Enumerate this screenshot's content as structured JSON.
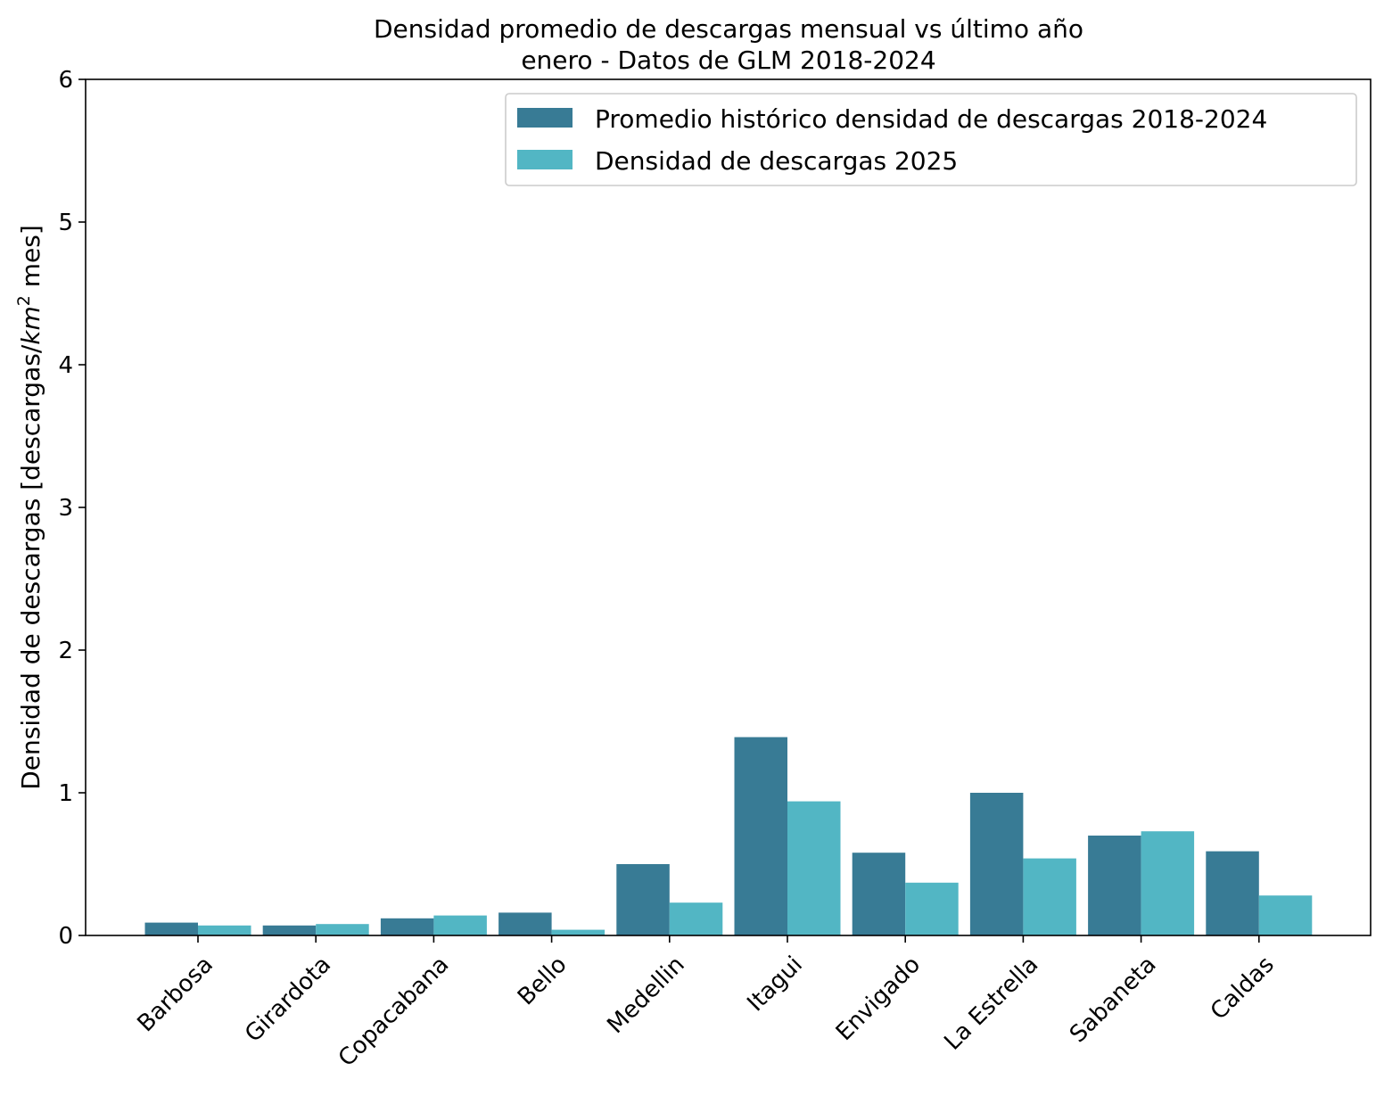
{
  "chart_data": {
    "type": "bar",
    "title": "Densidad promedio de descargas mensual vs último año",
    "subtitle": "enero - Datos de GLM 2018-2024",
    "xlabel": "",
    "ylabel_prefix": "Densidad de descargas [descargas/",
    "ylabel_unit": "km",
    "ylabel_exp": "2",
    "ylabel_suffix": " mes]",
    "ylim": [
      0,
      6
    ],
    "yticks": [
      0,
      1,
      2,
      3,
      4,
      5,
      6
    ],
    "grid": false,
    "legend_position": "top-right",
    "categories": [
      "Barbosa",
      "Girardota",
      "Copacabana",
      "Bello",
      "Medellin",
      "Itagui",
      "Envigado",
      "La Estrella",
      "Sabaneta",
      "Caldas"
    ],
    "series": [
      {
        "name": "Promedio histórico densidad de descargas 2018-2024",
        "color": "#387b95",
        "values": [
          0.09,
          0.07,
          0.12,
          0.16,
          0.5,
          1.39,
          0.58,
          1.0,
          0.7,
          0.59
        ]
      },
      {
        "name": "Densidad de descargas 2025",
        "color": "#52b6c4",
        "values": [
          0.07,
          0.08,
          0.14,
          0.04,
          0.23,
          0.94,
          0.37,
          0.54,
          0.73,
          0.28
        ]
      }
    ]
  }
}
